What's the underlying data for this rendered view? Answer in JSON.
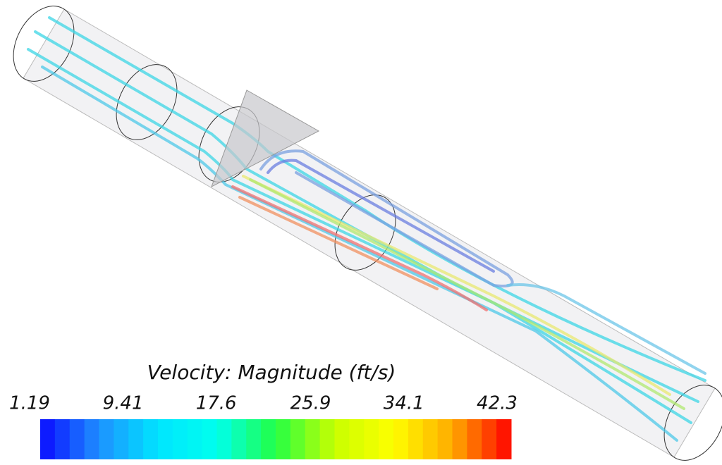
{
  "colorbar": {
    "title": "Velocity: Magnitude (ft/s)",
    "range": [
      1.19,
      42.3
    ],
    "ticks": [
      1.19,
      9.41,
      17.6,
      25.9,
      34.1,
      42.3
    ],
    "colors": [
      "#0a0aff",
      "#1e90ff",
      "#00e5ff",
      "#00ffee",
      "#22ff44",
      "#c8ff00",
      "#ffff00",
      "#ffaa00",
      "#ff0000"
    ]
  }
}
